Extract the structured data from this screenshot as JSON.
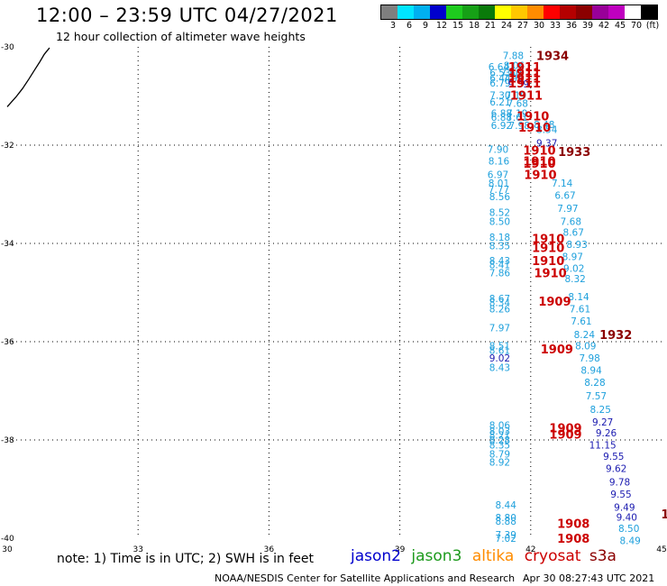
{
  "header": {
    "title": "12:00 – 23:59 UTC 04/27/2021",
    "subtitle": "12 hour collection of altimeter wave heights"
  },
  "legend": {
    "colors": [
      "#7f7f7f",
      "#00e5ff",
      "#00b0f0",
      "#0000cd",
      "#1ecb1e",
      "#16a016",
      "#0a7a0a",
      "#ffff00",
      "#ffc800",
      "#ff8c00",
      "#ff0000",
      "#b40000",
      "#8b0000",
      "#990099",
      "#bf00bf",
      "#ffffff",
      "#000000"
    ],
    "labels": [
      "3",
      "6",
      "9",
      "12",
      "15",
      "18",
      "21",
      "24",
      "27",
      "30",
      "33",
      "36",
      "39",
      "42",
      "45",
      "70",
      "(ft)"
    ]
  },
  "axes": {
    "x_ticks": [
      30,
      33,
      36,
      39,
      42,
      45
    ],
    "y_ticks": [
      -30,
      -32,
      -34,
      -36,
      -38,
      -40
    ],
    "x_range": [
      30,
      45
    ],
    "y_range": [
      -40,
      -30
    ]
  },
  "coastline": [
    [
      30.0,
      -31.22
    ],
    [
      30.2,
      -31.02
    ],
    [
      30.35,
      -30.85
    ],
    [
      30.5,
      -30.65
    ],
    [
      30.62,
      -30.48
    ],
    [
      30.75,
      -30.3
    ],
    [
      30.85,
      -30.15
    ],
    [
      30.97,
      -30.02
    ]
  ],
  "satellites": {
    "jason2": {
      "label": "jason2",
      "color": "#0000cd"
    },
    "jason3": {
      "label": "jason3",
      "color": "#1e9b1e"
    },
    "altika": {
      "label": "altika",
      "color": "#ff8c00"
    },
    "cryosat": {
      "label": "cryosat",
      "color": "#cc0000"
    },
    "s3a": {
      "label": "s3a",
      "color": "#8b0000"
    }
  },
  "note": "note: 1) Time is in UTC; 2) SWH is in feet",
  "footer": {
    "credit": "NOAA/NESDIS Center for Satellite Applications and Research",
    "timestamp": "Apr 30 08:27:43 UTC 2021"
  },
  "wave_heights": [
    {
      "lon": 41.6,
      "lat": -30.17,
      "v": "7.88",
      "c": "#1ea0dc"
    },
    {
      "lon": 41.27,
      "lat": -30.4,
      "v": "6.64",
      "c": "#1ea0dc"
    },
    {
      "lon": 41.62,
      "lat": -30.38,
      "v": "8.06",
      "c": "#1ea0dc"
    },
    {
      "lon": 41.3,
      "lat": -30.52,
      "v": "6.53",
      "c": "#1ea0dc"
    },
    {
      "lon": 41.55,
      "lat": -30.52,
      "v": "7.60",
      "c": "#1ea0dc"
    },
    {
      "lon": 41.3,
      "lat": -30.63,
      "v": "6.44",
      "c": "#1ea0dc"
    },
    {
      "lon": 41.6,
      "lat": -30.63,
      "v": "7.94",
      "c": "#1ea0dc"
    },
    {
      "lon": 41.3,
      "lat": -30.73,
      "v": "6.79",
      "c": "#1ea0dc"
    },
    {
      "lon": 41.72,
      "lat": -30.75,
      "v": "9.39",
      "c": "#1a1ab0"
    },
    {
      "lon": 41.3,
      "lat": -30.98,
      "v": "7.30",
      "c": "#1ea0dc"
    },
    {
      "lon": 41.66,
      "lat": -30.98,
      "v": "7.19",
      "c": "#1ea0dc"
    },
    {
      "lon": 41.3,
      "lat": -31.12,
      "v": "6.21",
      "c": "#1ea0dc"
    },
    {
      "lon": 41.7,
      "lat": -31.15,
      "v": "7.68",
      "c": "#1ea0dc"
    },
    {
      "lon": 41.33,
      "lat": -31.35,
      "v": "6.88",
      "c": "#1ea0dc"
    },
    {
      "lon": 41.69,
      "lat": -31.35,
      "v": "7.19",
      "c": "#1ea0dc"
    },
    {
      "lon": 41.33,
      "lat": -31.43,
      "v": "6.88",
      "c": "#1ea0dc"
    },
    {
      "lon": 41.69,
      "lat": -31.43,
      "v": "7.61",
      "c": "#1ea0dc"
    },
    {
      "lon": 41.33,
      "lat": -31.6,
      "v": "6.92",
      "c": "#1ea0dc"
    },
    {
      "lon": 41.74,
      "lat": -31.6,
      "v": "7.98",
      "c": "#1ea0dc"
    },
    {
      "lon": 42.31,
      "lat": -31.58,
      "v": "8.48",
      "c": "#1ea0dc"
    },
    {
      "lon": 42.37,
      "lat": -31.68,
      "v": "8.54",
      "c": "#1ea0dc"
    },
    {
      "lon": 42.37,
      "lat": -31.95,
      "v": "9.37",
      "c": "#1a1ab0"
    },
    {
      "lon": 41.25,
      "lat": -32.08,
      "v": "7.90",
      "c": "#1ea0dc"
    },
    {
      "lon": 41.27,
      "lat": -32.32,
      "v": "8.16",
      "c": "#1ea0dc"
    },
    {
      "lon": 41.25,
      "lat": -32.6,
      "v": "6.97",
      "c": "#1ea0dc"
    },
    {
      "lon": 41.27,
      "lat": -32.77,
      "v": "8.01",
      "c": "#1ea0dc"
    },
    {
      "lon": 41.27,
      "lat": -32.9,
      "v": "7.77",
      "c": "#1ea0dc"
    },
    {
      "lon": 41.29,
      "lat": -33.05,
      "v": "8.56",
      "c": "#1ea0dc"
    },
    {
      "lon": 42.72,
      "lat": -32.77,
      "v": "7.14",
      "c": "#1ea0dc"
    },
    {
      "lon": 42.79,
      "lat": -33.02,
      "v": "6.67",
      "c": "#1ea0dc"
    },
    {
      "lon": 42.85,
      "lat": -33.28,
      "v": "7.97",
      "c": "#1ea0dc"
    },
    {
      "lon": 41.29,
      "lat": -33.37,
      "v": "8.52",
      "c": "#1ea0dc"
    },
    {
      "lon": 41.29,
      "lat": -33.55,
      "v": "8.50",
      "c": "#1ea0dc"
    },
    {
      "lon": 42.92,
      "lat": -33.55,
      "v": "7.68",
      "c": "#1ea0dc"
    },
    {
      "lon": 42.98,
      "lat": -33.77,
      "v": "8.67",
      "c": "#1ea0dc"
    },
    {
      "lon": 41.29,
      "lat": -33.87,
      "v": "8.18",
      "c": "#1ea0dc"
    },
    {
      "lon": 41.29,
      "lat": -34.05,
      "v": "8.35",
      "c": "#1ea0dc"
    },
    {
      "lon": 43.06,
      "lat": -34.02,
      "v": "8.93",
      "c": "#1ea0dc"
    },
    {
      "lon": 42.96,
      "lat": -34.27,
      "v": "8.97",
      "c": "#1ea0dc"
    },
    {
      "lon": 41.29,
      "lat": -34.35,
      "v": "8.43",
      "c": "#1ea0dc"
    },
    {
      "lon": 41.29,
      "lat": -34.43,
      "v": "8.41",
      "c": "#1ea0dc"
    },
    {
      "lon": 42.99,
      "lat": -34.5,
      "v": "9.02",
      "c": "#1ea0dc"
    },
    {
      "lon": 41.29,
      "lat": -34.6,
      "v": "7.86",
      "c": "#1ea0dc"
    },
    {
      "lon": 43.02,
      "lat": -34.72,
      "v": "8.32",
      "c": "#1ea0dc"
    },
    {
      "lon": 41.29,
      "lat": -35.12,
      "v": "8.67",
      "c": "#1ea0dc"
    },
    {
      "lon": 41.29,
      "lat": -35.2,
      "v": "8.34",
      "c": "#1ea0dc"
    },
    {
      "lon": 41.29,
      "lat": -35.33,
      "v": "8.26",
      "c": "#1ea0dc"
    },
    {
      "lon": 43.1,
      "lat": -35.08,
      "v": "8.14",
      "c": "#1ea0dc"
    },
    {
      "lon": 43.13,
      "lat": -35.33,
      "v": "7.61",
      "c": "#1ea0dc"
    },
    {
      "lon": 43.16,
      "lat": -35.58,
      "v": "7.61",
      "c": "#1ea0dc"
    },
    {
      "lon": 41.29,
      "lat": -35.72,
      "v": "7.97",
      "c": "#1ea0dc"
    },
    {
      "lon": 43.23,
      "lat": -35.85,
      "v": "8.24",
      "c": "#1ea0dc"
    },
    {
      "lon": 41.29,
      "lat": -36.08,
      "v": "8.51",
      "c": "#1ea0dc"
    },
    {
      "lon": 41.29,
      "lat": -36.17,
      "v": "8.61",
      "c": "#1ea0dc"
    },
    {
      "lon": 43.26,
      "lat": -36.08,
      "v": "8.09",
      "c": "#1ea0dc"
    },
    {
      "lon": 41.29,
      "lat": -36.33,
      "v": "9.02",
      "c": "#1a1ab0"
    },
    {
      "lon": 43.35,
      "lat": -36.33,
      "v": "7.98",
      "c": "#1ea0dc"
    },
    {
      "lon": 41.29,
      "lat": -36.52,
      "v": "8.43",
      "c": "#1ea0dc"
    },
    {
      "lon": 43.39,
      "lat": -36.58,
      "v": "8.94",
      "c": "#1ea0dc"
    },
    {
      "lon": 43.47,
      "lat": -36.83,
      "v": "8.28",
      "c": "#1ea0dc"
    },
    {
      "lon": 43.5,
      "lat": -37.1,
      "v": "7.57",
      "c": "#1ea0dc"
    },
    {
      "lon": 43.6,
      "lat": -37.38,
      "v": "8.25",
      "c": "#1ea0dc"
    },
    {
      "lon": 43.65,
      "lat": -37.63,
      "v": "9.27",
      "c": "#1a1ab0"
    },
    {
      "lon": 41.29,
      "lat": -37.7,
      "v": "8.06",
      "c": "#1ea0dc"
    },
    {
      "lon": 41.29,
      "lat": -37.82,
      "v": "8.03",
      "c": "#1ea0dc"
    },
    {
      "lon": 41.29,
      "lat": -37.9,
      "v": "8.21",
      "c": "#1ea0dc"
    },
    {
      "lon": 41.29,
      "lat": -38.0,
      "v": "8.28",
      "c": "#1ea0dc"
    },
    {
      "lon": 41.29,
      "lat": -38.1,
      "v": "8.35",
      "c": "#1ea0dc"
    },
    {
      "lon": 43.73,
      "lat": -37.85,
      "v": "9.26",
      "c": "#1a1ab0"
    },
    {
      "lon": 43.65,
      "lat": -38.1,
      "v": "11.15",
      "c": "#1a1ab0"
    },
    {
      "lon": 41.29,
      "lat": -38.28,
      "v": "8.79",
      "c": "#1ea0dc"
    },
    {
      "lon": 41.29,
      "lat": -38.45,
      "v": "8.92",
      "c": "#1ea0dc"
    },
    {
      "lon": 43.9,
      "lat": -38.33,
      "v": "9.55",
      "c": "#1a1ab0"
    },
    {
      "lon": 43.96,
      "lat": -38.58,
      "v": "9.62",
      "c": "#1a1ab0"
    },
    {
      "lon": 44.04,
      "lat": -38.85,
      "v": "9.78",
      "c": "#1a1ab0"
    },
    {
      "lon": 44.07,
      "lat": -39.1,
      "v": "9.55",
      "c": "#1a1ab0"
    },
    {
      "lon": 41.43,
      "lat": -39.32,
      "v": "8.44",
      "c": "#1ea0dc"
    },
    {
      "lon": 44.15,
      "lat": -39.37,
      "v": "9.49",
      "c": "#1a1ab0"
    },
    {
      "lon": 41.43,
      "lat": -39.58,
      "v": "8.80",
      "c": "#1ea0dc"
    },
    {
      "lon": 41.43,
      "lat": -39.65,
      "v": "8.88",
      "c": "#1ea0dc"
    },
    {
      "lon": 44.2,
      "lat": -39.57,
      "v": "9.40",
      "c": "#1a1ab0"
    },
    {
      "lon": 44.25,
      "lat": -39.8,
      "v": "8.50",
      "c": "#1ea0dc"
    },
    {
      "lon": 41.43,
      "lat": -39.93,
      "v": "7.39",
      "c": "#1ea0dc"
    },
    {
      "lon": 41.43,
      "lat": -40.0,
      "v": "7.02",
      "c": "#1ea0dc"
    },
    {
      "lon": 44.28,
      "lat": -40.05,
      "v": "8.49",
      "c": "#1ea0dc"
    }
  ],
  "time_stamps": [
    {
      "lon": 42.5,
      "lat": -30.17,
      "v": "1934",
      "c": "#8b0000"
    },
    {
      "lon": 41.86,
      "lat": -30.4,
      "v": "1911",
      "c": "#cc0000"
    },
    {
      "lon": 41.86,
      "lat": -30.52,
      "v": "1911",
      "c": "#cc0000"
    },
    {
      "lon": 41.86,
      "lat": -30.63,
      "v": "1911",
      "c": "#cc0000"
    },
    {
      "lon": 41.86,
      "lat": -30.73,
      "v": "1911",
      "c": "#cc0000"
    },
    {
      "lon": 41.9,
      "lat": -30.98,
      "v": "1911",
      "c": "#cc0000"
    },
    {
      "lon": 42.05,
      "lat": -31.4,
      "v": "1910",
      "c": "#cc0000"
    },
    {
      "lon": 42.09,
      "lat": -31.63,
      "v": "1910",
      "c": "#cc0000"
    },
    {
      "lon": 42.2,
      "lat": -32.1,
      "v": "1910",
      "c": "#cc0000"
    },
    {
      "lon": 43.0,
      "lat": -32.13,
      "v": "1933",
      "c": "#8b0000"
    },
    {
      "lon": 42.2,
      "lat": -32.32,
      "v": "1910",
      "c": "#cc0000"
    },
    {
      "lon": 42.2,
      "lat": -32.37,
      "v": "1910",
      "c": "#cc0000"
    },
    {
      "lon": 42.22,
      "lat": -32.6,
      "v": "1910",
      "c": "#cc0000"
    },
    {
      "lon": 42.4,
      "lat": -33.9,
      "v": "1910",
      "c": "#cc0000"
    },
    {
      "lon": 42.4,
      "lat": -34.08,
      "v": "1910",
      "c": "#cc0000"
    },
    {
      "lon": 42.4,
      "lat": -34.35,
      "v": "1910",
      "c": "#cc0000"
    },
    {
      "lon": 42.45,
      "lat": -34.6,
      "v": "1910",
      "c": "#cc0000"
    },
    {
      "lon": 42.55,
      "lat": -35.17,
      "v": "1909",
      "c": "#cc0000"
    },
    {
      "lon": 43.95,
      "lat": -35.85,
      "v": "1932",
      "c": "#8b0000"
    },
    {
      "lon": 42.6,
      "lat": -36.15,
      "v": "1909",
      "c": "#cc0000"
    },
    {
      "lon": 42.8,
      "lat": -37.75,
      "v": "1909",
      "c": "#cc0000"
    },
    {
      "lon": 42.8,
      "lat": -37.88,
      "v": "1909",
      "c": "#cc0000"
    },
    {
      "lon": 42.98,
      "lat": -39.7,
      "v": "1908",
      "c": "#cc0000"
    },
    {
      "lon": 42.98,
      "lat": -40.0,
      "v": "1908",
      "c": "#cc0000"
    },
    {
      "lon": 45.08,
      "lat": -39.5,
      "v": "1",
      "c": "#8b0000"
    }
  ]
}
